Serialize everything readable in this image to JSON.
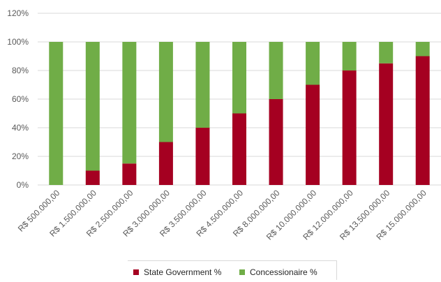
{
  "chart_data": {
    "type": "bar",
    "stacked": true,
    "categories": [
      "R$ 500.000,00",
      "R$ 1.500.000,00",
      "R$ 2.500.000,00",
      "R$ 3.000.000,00",
      "R$ 3.500.000,00",
      "R$ 4.500.000,00",
      "R$ 8.000.000,00",
      "R$ 10.000.000,00",
      "R$ 12.000.000,00",
      "R$ 13.500.000,00",
      "R$ 15.000.000,00"
    ],
    "series": [
      {
        "name": "State Government %",
        "color": "#a50021",
        "values": [
          0,
          10,
          15,
          30,
          40,
          50,
          60,
          70,
          80,
          85,
          90
        ]
      },
      {
        "name": "Concessionaire %",
        "color": "#70ad47",
        "values": [
          100,
          90,
          85,
          70,
          60,
          50,
          40,
          30,
          20,
          15,
          10
        ]
      }
    ],
    "y_ticks": [
      "0%",
      "20%",
      "40%",
      "60%",
      "80%",
      "100%",
      "120%"
    ],
    "ylim": [
      0,
      120
    ],
    "grid": true,
    "legend_position": "bottom",
    "title": "",
    "xlabel": "",
    "ylabel": ""
  }
}
